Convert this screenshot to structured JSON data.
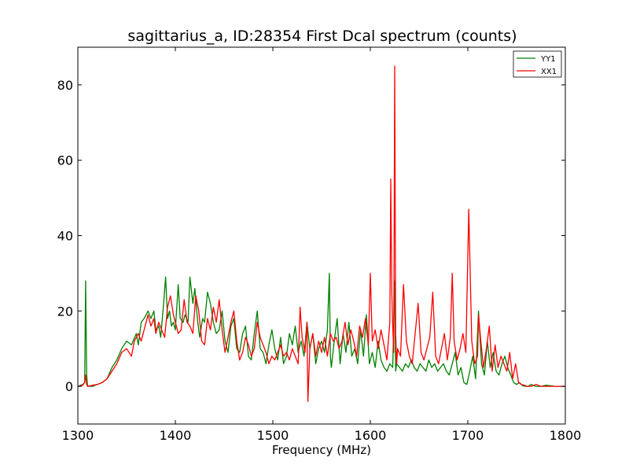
{
  "chart_data": {
    "type": "line",
    "title": "sagittarius_a, ID:28354 First Dcal spectrum (counts)",
    "xlabel": "Frequency (MHz)",
    "ylabel": "",
    "xlim": [
      1300,
      1800
    ],
    "ylim": [
      -10,
      90
    ],
    "xticks": [
      1300,
      1400,
      1500,
      1600,
      1700,
      1800
    ],
    "yticks": [
      0,
      20,
      40,
      60,
      80
    ],
    "grid": false,
    "legend_position": "top-right",
    "series": [
      {
        "name": "YY1",
        "color": "#008000",
        "x": [
          1300,
          1305,
          1307,
          1308,
          1309,
          1310,
          1315,
          1320,
          1325,
          1330,
          1335,
          1340,
          1345,
          1350,
          1355,
          1360,
          1362,
          1365,
          1368,
          1372,
          1375,
          1378,
          1380,
          1383,
          1385,
          1388,
          1390,
          1392,
          1394,
          1396,
          1398,
          1400,
          1403,
          1405,
          1408,
          1410,
          1413,
          1415,
          1418,
          1420,
          1423,
          1425,
          1428,
          1430,
          1433,
          1436,
          1439,
          1442,
          1445,
          1448,
          1451,
          1454,
          1457,
          1460,
          1463,
          1466,
          1469,
          1472,
          1475,
          1478,
          1481,
          1484,
          1487,
          1490,
          1493,
          1496,
          1499,
          1502,
          1505,
          1508,
          1511,
          1514,
          1517,
          1520,
          1523,
          1526,
          1529,
          1532,
          1535,
          1538,
          1541,
          1544,
          1547,
          1550,
          1553,
          1556,
          1558,
          1559,
          1560,
          1563,
          1566,
          1569,
          1572,
          1575,
          1578,
          1581,
          1584,
          1587,
          1590,
          1593,
          1596,
          1599,
          1602,
          1605,
          1608,
          1611,
          1614,
          1617,
          1620,
          1623,
          1625,
          1626,
          1627,
          1630,
          1633,
          1636,
          1639,
          1642,
          1645,
          1648,
          1651,
          1654,
          1657,
          1660,
          1663,
          1666,
          1669,
          1672,
          1675,
          1678,
          1681,
          1684,
          1687,
          1690,
          1693,
          1696,
          1699,
          1702,
          1705,
          1708,
          1711,
          1714,
          1717,
          1720,
          1723,
          1726,
          1729,
          1732,
          1735,
          1738,
          1741,
          1744,
          1747,
          1750,
          1753,
          1756,
          1759,
          1762,
          1765,
          1770,
          1775,
          1780,
          1790,
          1800
        ],
        "values": [
          0,
          0.5,
          1,
          28,
          3,
          0,
          0,
          0.5,
          1,
          2,
          5,
          7,
          10,
          12,
          11,
          14,
          11,
          17,
          18,
          20,
          18,
          20,
          15,
          16,
          13,
          22,
          29,
          18,
          20,
          16,
          17,
          15,
          27,
          18,
          17,
          19,
          17,
          29,
          22,
          26,
          17,
          13,
          18,
          17,
          25,
          22,
          17,
          14,
          15,
          20,
          12,
          9,
          16,
          18,
          10,
          9,
          14,
          16,
          8,
          7,
          14,
          20,
          10,
          9,
          6,
          11,
          15,
          10,
          7,
          13,
          6,
          8,
          14,
          11,
          16,
          9,
          12,
          8,
          17,
          10,
          14,
          6,
          10,
          12,
          9,
          15,
          30,
          8,
          5,
          12,
          18,
          6,
          14,
          9,
          17,
          8,
          10,
          6,
          15,
          8,
          19,
          6,
          9,
          5,
          12,
          7,
          5,
          4,
          6,
          5,
          28,
          4,
          6,
          5,
          4,
          6,
          5,
          7,
          5,
          4,
          6,
          5,
          4,
          7,
          5,
          6,
          4,
          5,
          6,
          4,
          3,
          6,
          9,
          3,
          5,
          1,
          0.5,
          4,
          8,
          2,
          20,
          6,
          3,
          12,
          5,
          9,
          4,
          3,
          6,
          8,
          5,
          3,
          1,
          0.5,
          1,
          0.2,
          0,
          0,
          0.5,
          0,
          0,
          0.3,
          0,
          0
        ]
      },
      {
        "name": "XX1",
        "color": "#ff0000",
        "x": [
          1300,
          1305,
          1307,
          1308,
          1309,
          1310,
          1315,
          1320,
          1325,
          1330,
          1335,
          1340,
          1345,
          1350,
          1355,
          1358,
          1362,
          1365,
          1368,
          1372,
          1375,
          1378,
          1380,
          1383,
          1386,
          1389,
          1392,
          1395,
          1398,
          1400,
          1403,
          1406,
          1409,
          1412,
          1415,
          1418,
          1421,
          1424,
          1427,
          1430,
          1433,
          1436,
          1439,
          1442,
          1445,
          1448,
          1451,
          1454,
          1457,
          1460,
          1463,
          1466,
          1469,
          1472,
          1475,
          1478,
          1481,
          1484,
          1487,
          1490,
          1493,
          1496,
          1499,
          1502,
          1505,
          1508,
          1511,
          1514,
          1517,
          1520,
          1523,
          1526,
          1528,
          1530,
          1533,
          1535,
          1536,
          1538,
          1541,
          1544,
          1547,
          1550,
          1553,
          1556,
          1559,
          1562,
          1565,
          1568,
          1571,
          1574,
          1577,
          1580,
          1583,
          1586,
          1589,
          1592,
          1595,
          1598,
          1600,
          1602,
          1605,
          1608,
          1611,
          1614,
          1617,
          1620,
          1621,
          1622,
          1623,
          1624,
          1625,
          1626,
          1627,
          1628,
          1631,
          1634,
          1637,
          1640,
          1643,
          1646,
          1649,
          1652,
          1655,
          1658,
          1661,
          1664,
          1667,
          1670,
          1673,
          1676,
          1679,
          1682,
          1684,
          1686,
          1689,
          1692,
          1695,
          1698,
          1701,
          1704,
          1707,
          1710,
          1711,
          1713,
          1716,
          1719,
          1722,
          1725,
          1728,
          1731,
          1734,
          1737,
          1740,
          1743,
          1746,
          1749,
          1752,
          1755,
          1758,
          1761,
          1765,
          1770,
          1775,
          1780,
          1790,
          1800
        ],
        "values": [
          0,
          0.3,
          1,
          3,
          0.5,
          0,
          0.3,
          0.5,
          1,
          2,
          4,
          6,
          9,
          10,
          8,
          12,
          14,
          12,
          15,
          19,
          16,
          18,
          14,
          17,
          15,
          13,
          21,
          24,
          19,
          17,
          14,
          15,
          23,
          17,
          16,
          14,
          24,
          20,
          12,
          11,
          18,
          15,
          21,
          17,
          23,
          15,
          9,
          13,
          17,
          20,
          12,
          7,
          9,
          13,
          11,
          8,
          10,
          17,
          13,
          11,
          9,
          6,
          8,
          7,
          9,
          11,
          8,
          9,
          7,
          10,
          8,
          6,
          21,
          13,
          9,
          17,
          -4,
          10,
          14,
          8,
          12,
          9,
          13,
          8,
          14,
          12,
          13,
          10,
          12,
          17,
          11,
          15,
          12,
          8,
          16,
          13,
          18,
          11,
          30,
          12,
          15,
          10,
          15,
          11,
          7,
          17,
          55,
          25,
          16,
          9,
          85,
          14,
          6,
          10,
          8,
          27,
          12,
          8,
          6,
          14,
          22,
          9,
          7,
          10,
          13,
          25,
          8,
          6,
          10,
          14,
          7,
          13,
          30,
          12,
          7,
          10,
          14,
          9,
          47,
          12,
          6,
          8,
          19,
          13,
          5,
          10,
          16,
          4,
          11,
          5,
          8,
          6,
          4,
          9,
          2,
          6,
          1,
          0.5,
          0.3,
          0,
          0,
          0.5,
          0,
          0,
          0,
          0
        ]
      }
    ]
  }
}
